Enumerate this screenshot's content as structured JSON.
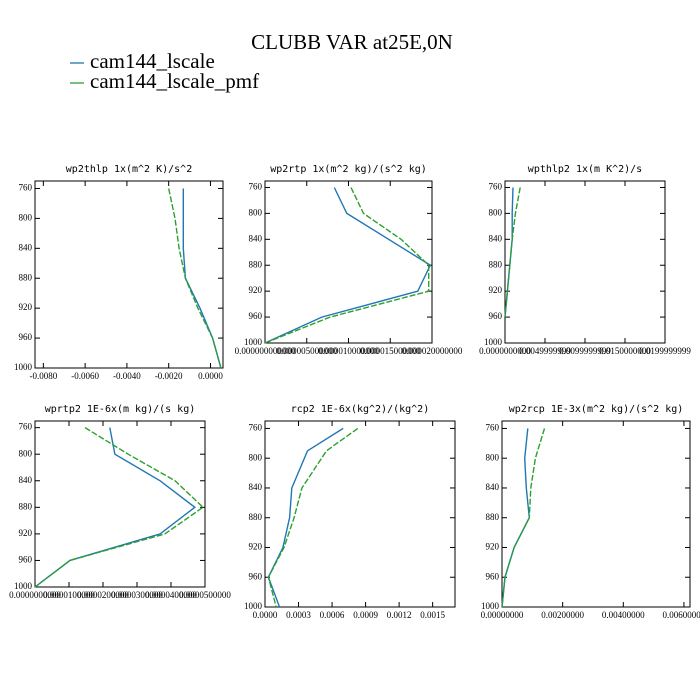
{
  "title": "CLUBB VAR at25E,0N",
  "legend": [
    {
      "name": "cam144_lscale",
      "color": "#1f77b4"
    },
    {
      "name": "cam144_lscale_pmf",
      "color": "#2ca02c"
    }
  ],
  "chart_data": [
    {
      "type": "line",
      "title": "wp2thlp  1x(m^2 K)/s^2",
      "y": [
        760,
        800,
        840,
        880,
        920,
        960,
        1000
      ],
      "series": [
        {
          "name": "cam144_lscale",
          "color": "#1f77b4",
          "values": [
            -0.0013,
            -0.0013,
            -0.0013,
            -0.0012,
            -0.0005,
            0.0001,
            0.0005
          ]
        },
        {
          "name": "cam144_lscale_pmf",
          "color": "#2ca02c",
          "values": [
            -0.002,
            -0.0017,
            -0.0015,
            -0.0012,
            -0.0006,
            0.0001,
            0.0005
          ]
        }
      ],
      "xlim": [
        -0.0084,
        0.0006
      ],
      "xticks": [
        {
          "value": -0.008,
          "label": "-0.0080"
        },
        {
          "value": -0.006,
          "label": "-0.0060"
        },
        {
          "value": -0.004,
          "label": "-0.0040"
        },
        {
          "value": -0.002,
          "label": "-0.0020"
        },
        {
          "value": 0,
          "label": "0.0000"
        }
      ],
      "ylim": [
        1000,
        750
      ],
      "yticks": [
        760,
        800,
        840,
        880,
        920,
        960,
        1000
      ]
    },
    {
      "type": "line",
      "title": "wp2rtp  1x(m^2 kg)/(s^2 kg)",
      "y": [
        760,
        800,
        840,
        880,
        920,
        960,
        1000
      ],
      "series": [
        {
          "name": "cam144_lscale",
          "color": "#1f77b4",
          "values": [
            8.3e-06,
            9.8e-06,
            1.48e-05,
            1.98e-05,
            1.83e-05,
            6.8e-06,
            0
          ]
        },
        {
          "name": "cam144_lscale_pmf",
          "color": "#2ca02c",
          "values": [
            1.03e-05,
            1.18e-05,
            1.63e-05,
            1.96e-05,
            1.96e-05,
            7.8e-06,
            0
          ]
        }
      ],
      "xlim": [
        0,
        2e-05
      ],
      "xticks": [
        {
          "value": 0,
          "label": "0.000000000000"
        },
        {
          "value": 5e-06,
          "label": "0.000005000000"
        },
        {
          "value": 1e-05,
          "label": "0.000010000000"
        },
        {
          "value": 1.5e-05,
          "label": "0.000015000000"
        },
        {
          "value": 2e-05,
          "label": "0.000020000000"
        }
      ],
      "ylim": [
        1000,
        750
      ],
      "yticks": [
        760,
        800,
        840,
        880,
        920,
        960,
        1000
      ]
    },
    {
      "type": "line",
      "title": "wpthlp2  1x(m K^2)/s",
      "y": [
        760,
        800,
        840,
        880,
        920,
        960
      ],
      "series": [
        {
          "name": "cam144_lscale",
          "color": "#1f77b4",
          "values": [
            0.001,
            0.0009,
            0.0009,
            0.0006,
            0.0003,
            0
          ]
        },
        {
          "name": "cam144_lscale_pmf",
          "color": "#2ca02c",
          "values": [
            0.0019,
            0.0013,
            0.0009,
            0.0006,
            0.0003,
            0
          ]
        }
      ],
      "xlim": [
        0,
        0.02
      ],
      "xticks": [
        {
          "value": 0,
          "label": "0.0000000000"
        },
        {
          "value": 0.005,
          "label": "0.0049999999"
        },
        {
          "value": 0.01,
          "label": "0.0099999999"
        },
        {
          "value": 0.015,
          "label": "0.0150000000"
        },
        {
          "value": 0.02,
          "label": "0.0199999999"
        }
      ],
      "ylim": [
        1000,
        750
      ],
      "yticks": [
        760,
        800,
        840,
        880,
        920,
        960,
        1000
      ]
    },
    {
      "type": "line",
      "title": "wprtp2  1E-6x(m kg)/(s kg)",
      "y": [
        760,
        800,
        840,
        880,
        920,
        960,
        1000
      ],
      "series": [
        {
          "name": "cam144_lscale",
          "color": "#1f77b4",
          "values": [
            2.2e-05,
            2.35e-05,
            3.68e-05,
            4.7e-05,
            3.68e-05,
            1.03e-05,
            0
          ]
        },
        {
          "name": "cam144_lscale_pmf",
          "color": "#2ca02c",
          "values": [
            1.47e-05,
            2.74e-05,
            4.12e-05,
            4.94e-05,
            3.82e-05,
            1.03e-05,
            0
          ]
        }
      ],
      "xlim": [
        0,
        5e-05
      ],
      "xticks": [
        {
          "value": 0,
          "label": "0.0000000000"
        },
        {
          "value": 1e-05,
          "label": "0.0000100000"
        },
        {
          "value": 2e-05,
          "label": "0.0000200000"
        },
        {
          "value": 3e-05,
          "label": "0.0000300000"
        },
        {
          "value": 4e-05,
          "label": "0.0000400000"
        },
        {
          "value": 5e-05,
          "label": "0.0000500000"
        }
      ],
      "ylim": [
        1000,
        750
      ],
      "yticks": [
        760,
        800,
        840,
        880,
        920,
        960,
        1000
      ]
    },
    {
      "type": "line",
      "title": "rcp2  1E-6x(kg^2)/(kg^2)",
      "y": [
        760,
        790,
        840,
        880,
        920,
        960,
        1000
      ],
      "series": [
        {
          "name": "cam144_lscale",
          "color": "#1f77b4",
          "values": [
            0.0007,
            0.00038,
            0.00024,
            0.00022,
            0.00016,
            3e-05,
            0.00013
          ]
        },
        {
          "name": "cam144_lscale_pmf",
          "color": "#2ca02c",
          "values": [
            0.00083,
            0.00055,
            0.00033,
            0.00026,
            0.00017,
            3e-05,
            0.0001
          ]
        }
      ],
      "xlim": [
        0,
        0.0017
      ],
      "xticks": [
        {
          "value": 0,
          "label": "0.0000"
        },
        {
          "value": 0.0003,
          "label": "0.0003"
        },
        {
          "value": 0.0006,
          "label": "0.0006"
        },
        {
          "value": 0.0009,
          "label": "0.0009"
        },
        {
          "value": 0.0012,
          "label": "0.0012"
        },
        {
          "value": 0.0015,
          "label": "0.0015"
        }
      ],
      "ylim": [
        1000,
        750
      ],
      "yticks": [
        760,
        800,
        840,
        880,
        920,
        960,
        1000
      ]
    },
    {
      "type": "line",
      "title": "wp2rcp  1E-3x(m^2 kg)/(s^2 kg)",
      "y": [
        760,
        800,
        840,
        880,
        920,
        960,
        1000
      ],
      "series": [
        {
          "name": "cam144_lscale",
          "color": "#1f77b4",
          "values": [
            0.00085,
            0.00075,
            0.0008,
            0.0009,
            0.0004,
            0.0001,
            0
          ]
        },
        {
          "name": "cam144_lscale_pmf",
          "color": "#2ca02c",
          "values": [
            0.0014,
            0.0011,
            0.00095,
            0.0009,
            0.0004,
            0.0001,
            0
          ]
        }
      ],
      "xlim": [
        0,
        0.0062
      ],
      "xticks": [
        {
          "value": 0,
          "label": "0.00000000"
        },
        {
          "value": 0.002,
          "label": "0.00200000"
        },
        {
          "value": 0.004,
          "label": "0.00400000"
        },
        {
          "value": 0.006,
          "label": "0.00600000"
        }
      ],
      "ylim": [
        1000,
        750
      ],
      "yticks": [
        760,
        800,
        840,
        880,
        920,
        960,
        1000
      ]
    }
  ]
}
